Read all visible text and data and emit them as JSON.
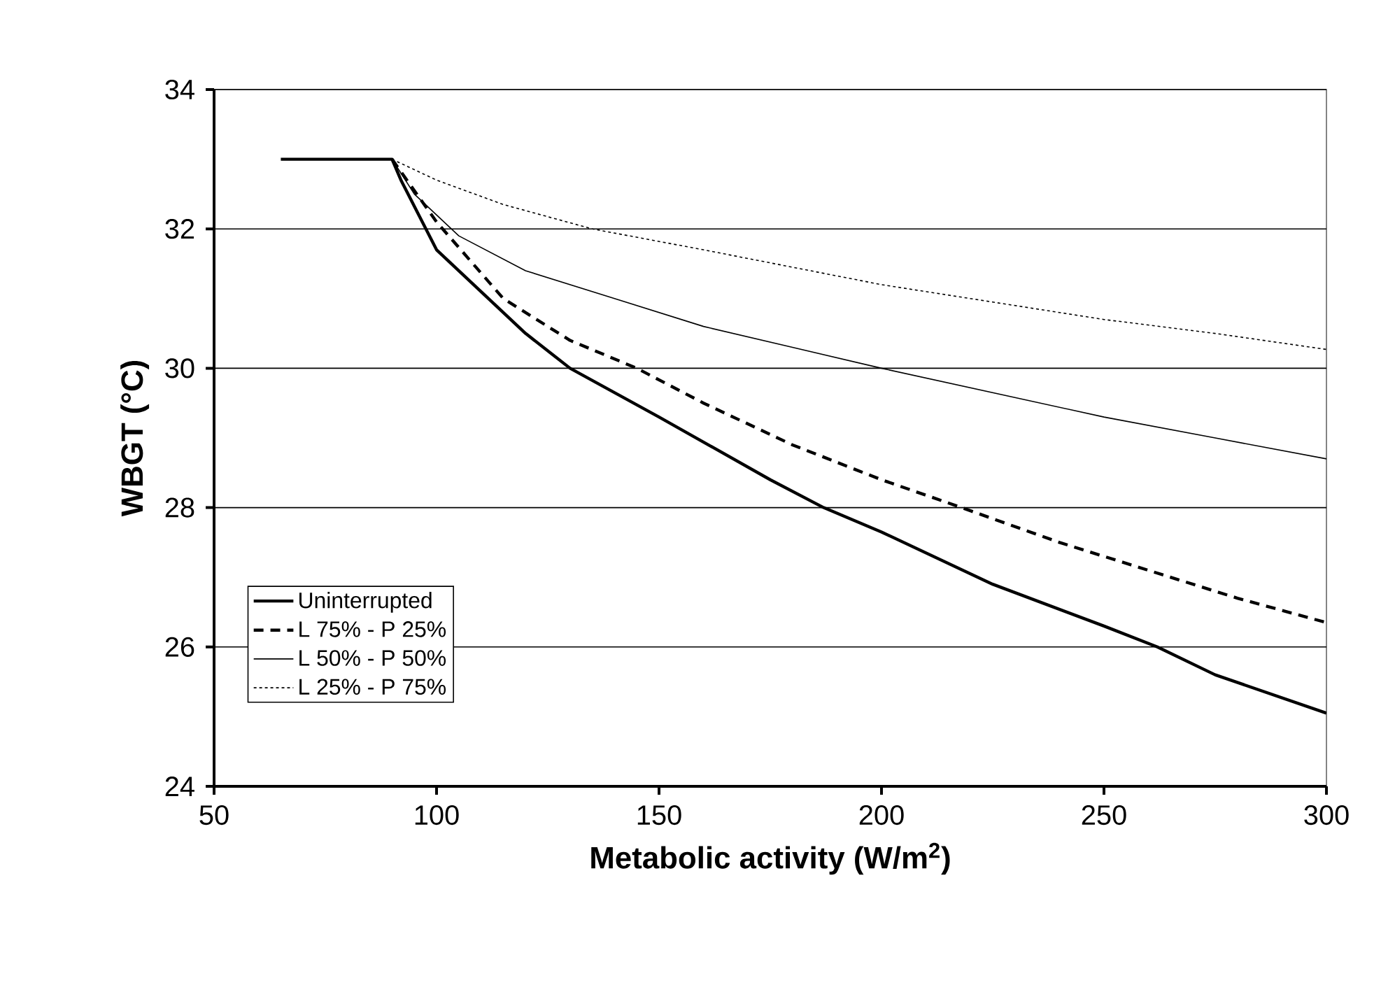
{
  "chart_data": {
    "type": "line",
    "xlabel": "Metabolic activity (W/m$^{2}$)",
    "ylabel": "WBGT (°C)",
    "xlim": [
      50,
      300
    ],
    "ylim": [
      24,
      34
    ],
    "xticks": [
      50,
      100,
      150,
      200,
      250,
      300
    ],
    "yticks": [
      24,
      26,
      28,
      30,
      32,
      34
    ],
    "grid": "y",
    "legend": "bottom left",
    "marker": "none",
    "series": [
      {
        "name": "Uninterrupted",
        "color": "#000000",
        "line_style": "solid",
        "x": [
          65,
          90,
          92,
          100,
          110,
          120,
          130,
          150,
          175,
          187,
          200,
          225,
          250,
          262,
          275,
          300
        ],
        "values": [
          33,
          33,
          32.7,
          31.7,
          31.1,
          30.5,
          30.0,
          29.3,
          28.4,
          28.0,
          27.65,
          26.9,
          26.3,
          26.0,
          25.6,
          25.05
        ]
      },
      {
        "name": "L 75% - P 25%",
        "color": "#000000",
        "line_style": "dashed",
        "x": [
          90,
          100,
          115,
          130,
          145,
          160,
          180,
          200,
          218,
          240,
          260,
          280,
          300
        ],
        "values": [
          33,
          32.1,
          31.0,
          30.4,
          30.0,
          29.5,
          28.9,
          28.4,
          28.0,
          27.5,
          27.1,
          26.7,
          26.35
        ]
      },
      {
        "name": "L 50% - P 50%",
        "color": "#000000",
        "line_style": "solid",
        "x": [
          90,
          95,
          105,
          120,
          140,
          160,
          180,
          200,
          225,
          250,
          275,
          300
        ],
        "values": [
          33,
          32.5,
          31.9,
          31.4,
          31.0,
          30.6,
          30.3,
          30.0,
          29.65,
          29.3,
          29.0,
          28.7
        ]
      },
      {
        "name": "L 25% - P 75%",
        "color": "#000000",
        "line_style": "dotted",
        "x": [
          90,
          100,
          115,
          135,
          160,
          180,
          200,
          225,
          250,
          275,
          300
        ],
        "values": [
          33,
          32.7,
          32.35,
          32.0,
          31.7,
          31.45,
          31.2,
          30.95,
          30.7,
          30.5,
          30.27
        ]
      }
    ]
  }
}
